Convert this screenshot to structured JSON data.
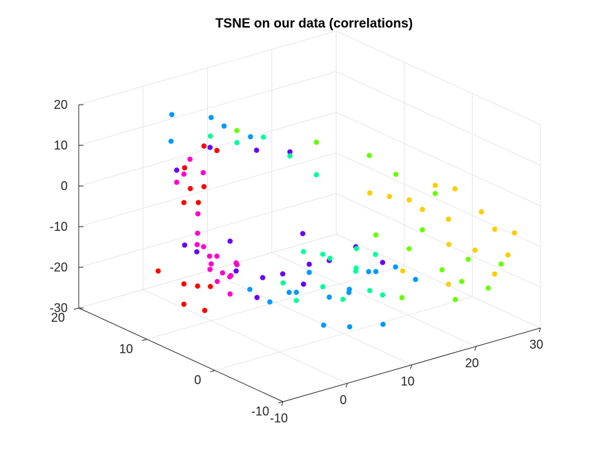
{
  "chart_data": {
    "type": "scatter",
    "title": "TSNE on our data (correlations)",
    "xlabel": "",
    "ylabel": "",
    "zlabel": "",
    "xlim": [
      -10,
      30
    ],
    "ylim": [
      -10,
      20
    ],
    "zlim": [
      -30,
      20
    ],
    "x_ticks": [
      "-10",
      "0",
      "10",
      "20",
      "30"
    ],
    "y_ticks": [
      "-10",
      "0",
      "10",
      "20"
    ],
    "z_ticks": [
      "-30",
      "-20",
      "-10",
      "0",
      "10",
      "20"
    ],
    "grid": true,
    "legend": "none",
    "series": [
      {
        "color": "#ff0000",
        "points": [
          [
            1,
            12,
            1
          ],
          [
            -2,
            12,
            7
          ],
          [
            1,
            14,
            -1
          ],
          [
            0,
            14,
            -4
          ],
          [
            -2,
            10,
            0
          ],
          [
            -4,
            14,
            -19
          ],
          [
            0,
            12,
            -23
          ],
          [
            2,
            12,
            -24
          ],
          [
            0,
            14,
            -24
          ],
          [
            -1,
            10,
            -27
          ],
          [
            3,
            12,
            9
          ],
          [
            1,
            12,
            11
          ],
          [
            0,
            14,
            -29
          ]
        ]
      },
      {
        "color": "#ff00cc",
        "points": [
          [
            2,
            15,
            5
          ],
          [
            0,
            14,
            3
          ],
          [
            3,
            14,
            2
          ],
          [
            -1,
            11,
            -4
          ],
          [
            1,
            13,
            -14
          ],
          [
            0,
            10,
            -16
          ],
          [
            3,
            12,
            -17
          ],
          [
            2,
            9,
            -19
          ],
          [
            4,
            14,
            -19
          ],
          [
            2,
            11,
            -22
          ],
          [
            5,
            12,
            -23
          ],
          [
            3,
            13,
            -21
          ],
          [
            6,
            14,
            -24
          ],
          [
            4,
            11,
            -26
          ],
          [
            1,
            16,
            -1
          ],
          [
            2,
            13,
            -15
          ],
          [
            4,
            10,
            -18
          ],
          [
            0,
            12,
            -10
          ],
          [
            6,
            12,
            -20
          ]
        ]
      },
      {
        "color": "#6600ff",
        "points": [
          [
            3,
            13,
            9
          ],
          [
            6,
            9,
            10
          ],
          [
            8,
            6,
            11
          ],
          [
            1,
            16,
            2
          ],
          [
            -2,
            12,
            -12
          ],
          [
            4,
            11,
            -13
          ],
          [
            2,
            14,
            -17
          ],
          [
            8,
            10,
            -23
          ],
          [
            6,
            12,
            -22
          ],
          [
            9,
            8,
            -21
          ],
          [
            11,
            6,
            -18
          ],
          [
            12,
            4,
            -16
          ],
          [
            5,
            8,
            -25
          ],
          [
            10,
            6,
            -10
          ],
          [
            8,
            4,
            -20
          ],
          [
            14,
            2,
            -12
          ],
          [
            15,
            -1,
            -14
          ]
        ]
      },
      {
        "color": "#0099ff",
        "points": [
          [
            -4,
            12,
            21
          ],
          [
            0,
            10,
            20
          ],
          [
            -2,
            14,
            12
          ],
          [
            2,
            10,
            17
          ],
          [
            4,
            8,
            15
          ],
          [
            6,
            10,
            -25
          ],
          [
            7,
            8,
            -27
          ],
          [
            9,
            6,
            -24
          ],
          [
            10,
            8,
            -26
          ],
          [
            12,
            4,
            -25
          ],
          [
            11,
            6,
            -20
          ],
          [
            13,
            2,
            -22
          ],
          [
            14,
            3,
            -24
          ],
          [
            16,
            2,
            -19
          ],
          [
            15,
            0,
            -17
          ],
          [
            17,
            -1,
            -16
          ],
          [
            18,
            -3,
            -18
          ],
          [
            14,
            -2,
            -28
          ],
          [
            9,
            2,
            -29
          ],
          [
            12,
            1,
            -30
          ]
        ]
      },
      {
        "color": "#00ff99",
        "points": [
          [
            2,
            12,
            13
          ],
          [
            4,
            10,
            12
          ],
          [
            6,
            8,
            14
          ],
          [
            8,
            6,
            10
          ],
          [
            10,
            4,
            6
          ],
          [
            8,
            4,
            -12
          ],
          [
            10,
            2,
            -13
          ],
          [
            11,
            4,
            -14
          ],
          [
            12,
            0,
            -10
          ],
          [
            13,
            1,
            -16
          ],
          [
            14,
            2,
            -18
          ],
          [
            11,
            4,
            -22
          ],
          [
            12,
            2,
            -24
          ],
          [
            9,
            6,
            -26
          ],
          [
            8,
            7,
            -22
          ],
          [
            13,
            -1,
            -20
          ],
          [
            15,
            -1,
            -22
          ],
          [
            16,
            1,
            -14
          ]
        ]
      },
      {
        "color": "#66ff00",
        "points": [
          [
            4,
            10,
            15
          ],
          [
            10,
            4,
            14
          ],
          [
            14,
            0,
            12
          ],
          [
            16,
            -2,
            8
          ],
          [
            20,
            -4,
            3
          ],
          [
            18,
            -4,
            -5
          ],
          [
            17,
            -3,
            -10
          ],
          [
            20,
            -5,
            -15
          ],
          [
            22,
            -6,
            -18
          ],
          [
            24,
            -8,
            -19
          ],
          [
            21,
            -6,
            -22
          ],
          [
            23,
            -6,
            -13
          ],
          [
            26,
            -8,
            -14
          ],
          [
            15,
            0,
            -8
          ],
          [
            18,
            -1,
            -24
          ]
        ]
      },
      {
        "color": "#ffcc00",
        "points": [
          [
            13,
            -1,
            4
          ],
          [
            15,
            -2,
            3
          ],
          [
            17,
            -3,
            2
          ],
          [
            20,
            -4,
            5
          ],
          [
            22,
            -5,
            4
          ],
          [
            18,
            -4,
            0
          ],
          [
            21,
            -5,
            -3
          ],
          [
            24,
            -7,
            -1
          ],
          [
            25,
            -8,
            -5
          ],
          [
            20,
            -6,
            -8
          ],
          [
            23,
            -7,
            -10
          ],
          [
            26,
            -9,
            -11
          ],
          [
            27,
            -9,
            -6
          ],
          [
            16,
            -3,
            -15
          ],
          [
            21,
            -5,
            -19
          ],
          [
            25,
            -8,
            -16
          ]
        ]
      }
    ]
  }
}
